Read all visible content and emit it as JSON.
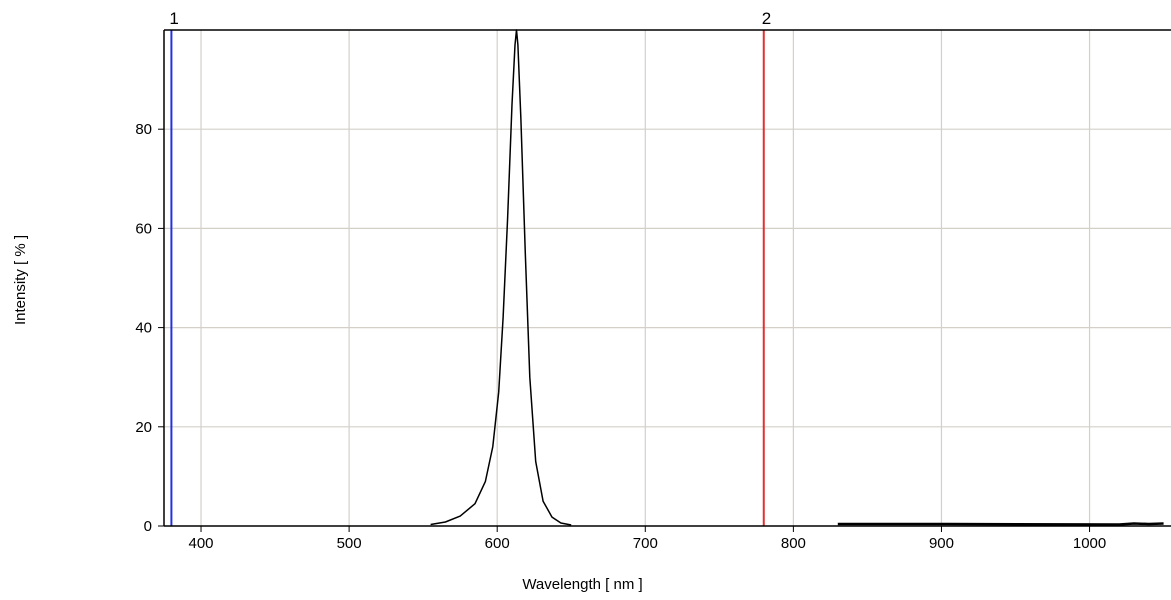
{
  "chart_data": {
    "type": "line",
    "xlabel": "Wavelength [ nm ]",
    "ylabel": "Intensity [ % ]",
    "xlim": [
      375,
      1055
    ],
    "ylim": [
      0,
      100
    ],
    "grid": true,
    "x_ticks": [
      400,
      500,
      600,
      700,
      800,
      900,
      1000
    ],
    "x_tick_labels": [
      "400",
      "500",
      "600",
      "700",
      "800",
      "900",
      "1000"
    ],
    "y_ticks": [
      0,
      20,
      40,
      60,
      80
    ],
    "y_tick_labels": [
      "0",
      "20",
      "40",
      "60",
      "80"
    ],
    "markers": [
      {
        "label": "1",
        "x": 380,
        "color": "#2233dd"
      },
      {
        "label": "2",
        "x": 780,
        "color": "#e03030"
      }
    ],
    "series": [
      {
        "color": "#000000",
        "x": [
          555,
          565,
          575,
          585,
          592,
          597,
          601,
          604,
          607,
          610,
          612,
          613,
          614,
          616,
          619,
          622,
          626,
          631,
          637,
          643,
          650
        ],
        "y": [
          0.3,
          0.8,
          2.0,
          4.5,
          9.0,
          16.0,
          27.0,
          42.0,
          62.0,
          85.0,
          97.0,
          100.0,
          97.0,
          82.0,
          55.0,
          30.0,
          13.0,
          5.0,
          1.8,
          0.6,
          0.2
        ]
      },
      {
        "color": "#000000",
        "x": [
          830,
          845,
          860,
          875,
          890,
          905,
          1020,
          1030,
          1040,
          1050
        ],
        "y": [
          0.4,
          0.4,
          0.4,
          0.4,
          0.4,
          0.4,
          0.3,
          0.5,
          0.4,
          0.5
        ]
      }
    ]
  }
}
